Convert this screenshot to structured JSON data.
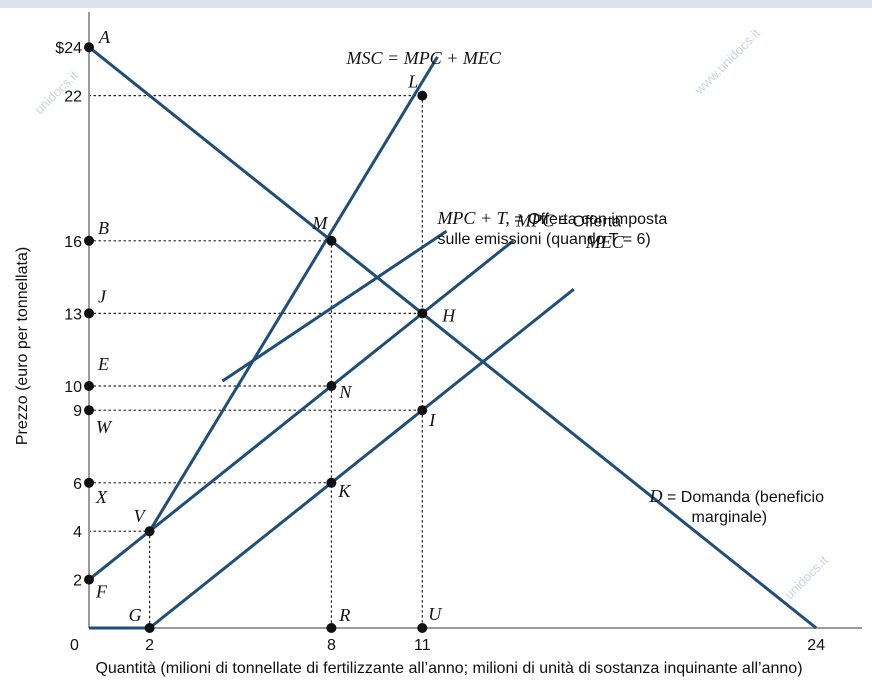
{
  "chart_data": {
    "type": "line",
    "ylabel": "Prezzo (euro per tonnellata)",
    "xlabel": "Quantità (milioni di tonnellate di fertilizzante all’anno; milioni di unità di sostanza inquinante all’anno)",
    "xlim": [
      0,
      24
    ],
    "ylim": [
      0,
      24
    ],
    "origin_label": "0",
    "x_ticks": [
      {
        "v": 2,
        "label": "2"
      },
      {
        "v": 8,
        "label": "8"
      },
      {
        "v": 11,
        "label": "11"
      },
      {
        "v": 24,
        "label": "24"
      }
    ],
    "y_ticks": [
      {
        "v": 24,
        "label": "$24"
      },
      {
        "v": 22,
        "label": "22"
      },
      {
        "v": 16,
        "label": "16"
      },
      {
        "v": 13,
        "label": "13"
      },
      {
        "v": 10,
        "label": "10"
      },
      {
        "v": 9,
        "label": "9"
      },
      {
        "v": 6,
        "label": "6"
      },
      {
        "v": 4,
        "label": "4"
      },
      {
        "v": 2,
        "label": "2"
      }
    ],
    "series": [
      {
        "id": "demand",
        "points": [
          [
            0,
            24
          ],
          [
            24,
            0
          ]
        ]
      },
      {
        "id": "mpc",
        "points": [
          [
            0,
            2
          ],
          [
            14,
            16
          ]
        ]
      },
      {
        "id": "mpc_t",
        "points": [
          [
            4.4,
            10.2
          ],
          [
            11.8,
            16.4
          ]
        ]
      },
      {
        "id": "mec",
        "points": [
          [
            0,
            0
          ],
          [
            2,
            0
          ],
          [
            16,
            14
          ]
        ]
      },
      {
        "id": "msc",
        "points": [
          [
            2,
            4
          ],
          [
            11.5,
            23.6
          ]
        ]
      }
    ],
    "curve_labels": [
      {
        "id": "msc",
        "prefix_italic": "MSC = MPC + MEC",
        "text": "",
        "at": [
          8.5,
          23.3
        ]
      },
      {
        "id": "mpc_t",
        "prefix_italic": "MPC + T,",
        "text": " = Offerta con imposta",
        "line2": "sulle emissioni (quando T = 6)",
        "at": [
          11.5,
          16.7
        ]
      },
      {
        "id": "mpc",
        "prefix_italic": "MPC",
        "text": " = Offerta",
        "at": [
          14.1,
          16.6
        ]
      },
      {
        "id": "mec",
        "prefix_italic": "MEC",
        "text": "",
        "at": [
          16.4,
          15.7
        ]
      },
      {
        "id": "demand",
        "prefix_italic": "D",
        "text": " = Domanda (beneficio",
        "line2": "marginale)",
        "at": [
          18.5,
          5.2
        ]
      }
    ],
    "points": [
      {
        "label": "A",
        "x": 0,
        "y": 24
      },
      {
        "label": "B",
        "x": 0,
        "y": 16
      },
      {
        "label": "J",
        "x": 0,
        "y": 13
      },
      {
        "label": "E",
        "x": 0,
        "y": 10
      },
      {
        "label": "W",
        "x": 0,
        "y": 9
      },
      {
        "label": "X",
        "x": 0,
        "y": 6
      },
      {
        "label": "F",
        "x": 0,
        "y": 2
      },
      {
        "label": "G",
        "x": 2,
        "y": 0
      },
      {
        "label": "V",
        "x": 2,
        "y": 4
      },
      {
        "label": "M",
        "x": 8,
        "y": 16
      },
      {
        "label": "N",
        "x": 8,
        "y": 10
      },
      {
        "label": "K",
        "x": 8,
        "y": 6
      },
      {
        "label": "R",
        "x": 8,
        "y": 0
      },
      {
        "label": "L",
        "x": 11,
        "y": 22
      },
      {
        "label": "H",
        "x": 11,
        "y": 13
      },
      {
        "label": "I",
        "x": 11,
        "y": 9
      },
      {
        "label": "U",
        "x": 11,
        "y": 0
      }
    ],
    "guides": [
      {
        "from": [
          0,
          22
        ],
        "to": [
          11,
          22
        ]
      },
      {
        "from": [
          0,
          16
        ],
        "to": [
          8,
          16
        ]
      },
      {
        "from": [
          0,
          13
        ],
        "to": [
          11,
          13
        ]
      },
      {
        "from": [
          0,
          10
        ],
        "to": [
          8,
          10
        ]
      },
      {
        "from": [
          0,
          9
        ],
        "to": [
          11,
          9
        ]
      },
      {
        "from": [
          0,
          6
        ],
        "to": [
          8,
          6
        ]
      },
      {
        "from": [
          0,
          4
        ],
        "to": [
          2,
          4
        ]
      },
      {
        "from": [
          2,
          4
        ],
        "to": [
          2,
          0
        ]
      },
      {
        "from": [
          8,
          16
        ],
        "to": [
          8,
          0
        ]
      },
      {
        "from": [
          11,
          22
        ],
        "to": [
          11,
          0
        ]
      }
    ],
    "grid": false,
    "legend": "none",
    "colors": {
      "curve": "#1f4e7a",
      "axis": "#9a9a9a",
      "guide": "#222222",
      "point": "#111111"
    }
  },
  "watermarks": [
    "unidocs.it",
    "www.unidocs.it",
    "unidocs.it"
  ]
}
